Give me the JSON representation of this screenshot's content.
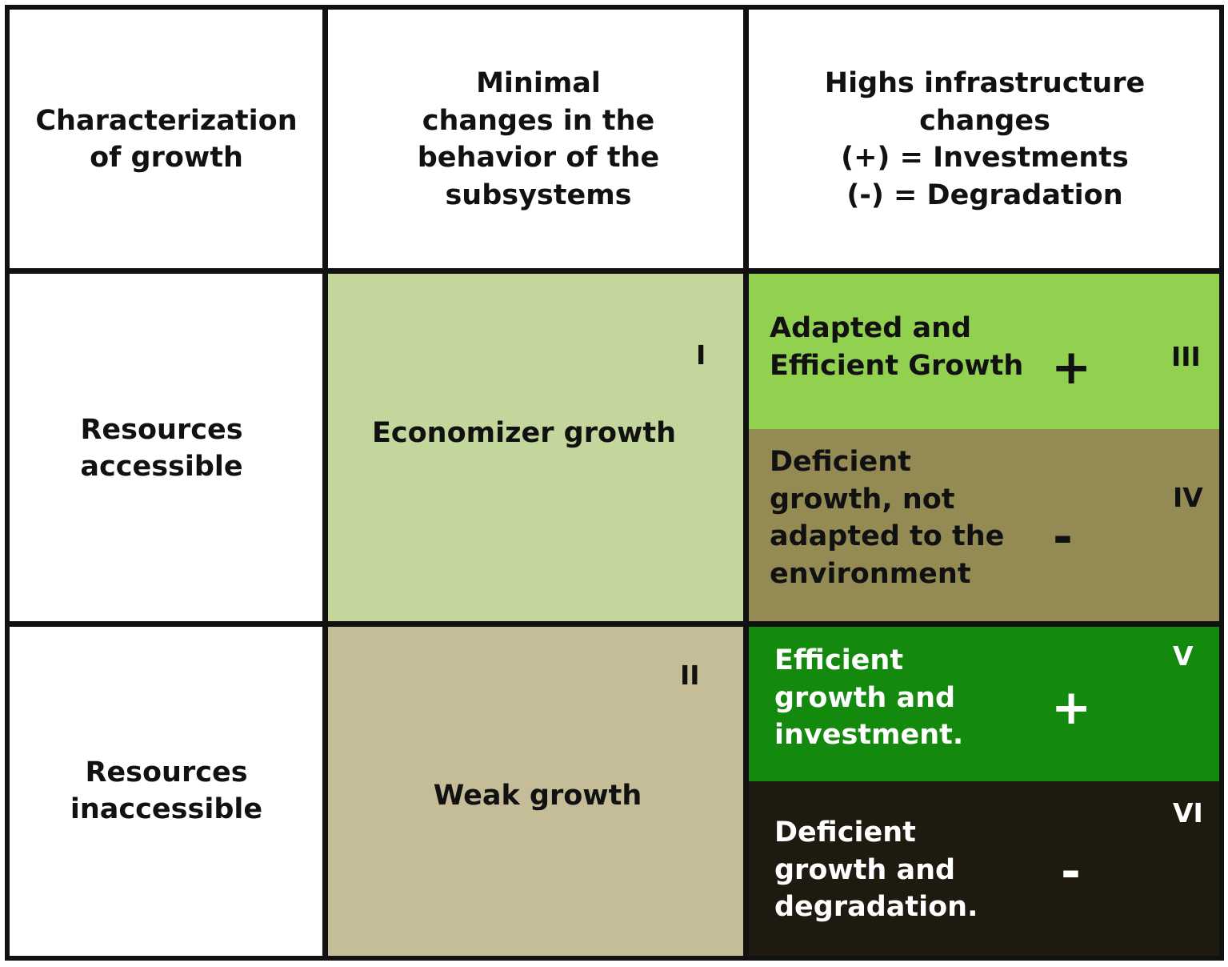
{
  "header": {
    "col0": "Characterization\nof  growth",
    "col1": "Minimal\nchanges in the\nbehavior of the\nsubsystems",
    "col2": "Highs infrastructure\nchanges\n(+) = Investments\n(-) = Degradation"
  },
  "rows": {
    "accessible": "Resources\naccessible",
    "inaccessible": "Resources\ninaccessible"
  },
  "cells": {
    "economizer": {
      "text": "Economizer growth",
      "numeral": "I",
      "color": "#c3d69b"
    },
    "weak": {
      "text": "Weak growth",
      "numeral": "II",
      "color": "#c4bd97"
    },
    "adapted": {
      "text": "Adapted and\nEfficient Growth",
      "numeral": "III",
      "sign": "+",
      "color": "#92d050"
    },
    "deficient_env": {
      "text": "Deficient\ngrowth, not\nadapted to the\nenvironment",
      "numeral": "IV",
      "sign": "-",
      "color": "#948a54"
    },
    "efficient_inv": {
      "text": "Efficient\ngrowth  and\ninvestment.",
      "numeral": "V",
      "sign": "+",
      "color": "#138a0e"
    },
    "deficient_deg": {
      "text": "Deficient\ngrowth and\ndegradation.",
      "numeral": "VI",
      "sign": "-",
      "color": "#1f1a10"
    }
  },
  "colors": {
    "border": "#111111",
    "white_text": "#ffffff"
  }
}
